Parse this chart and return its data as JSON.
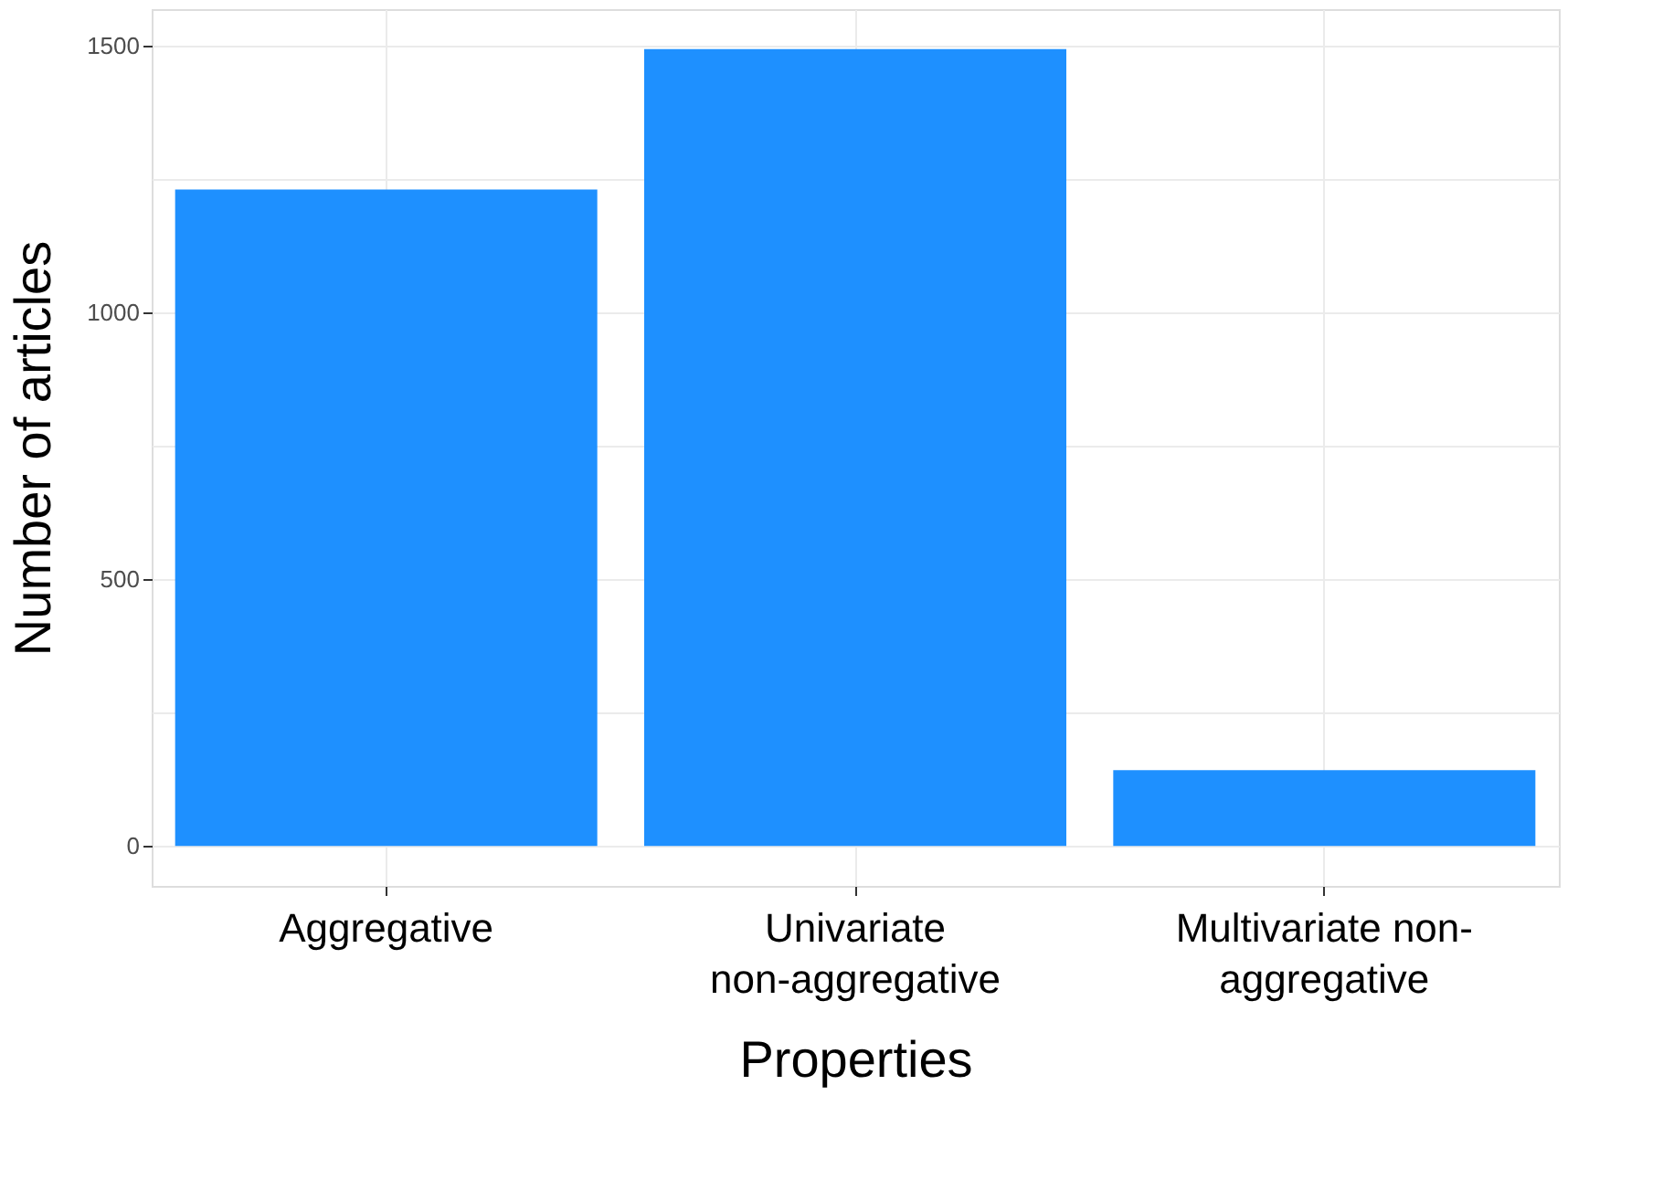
{
  "chart_data": {
    "type": "bar",
    "xlabel": "Properties",
    "ylabel": "Number of articles",
    "categories": [
      "Aggregative",
      "Univariate\nnon-aggregative",
      "Multivariate non-\naggregative"
    ],
    "values": [
      1230,
      1493,
      142
    ],
    "color": "#1e90ff",
    "ylim": [
      -75,
      1568
    ],
    "yticks": [
      0,
      {
        "value": 250,
        "label": null
      },
      500,
      {
        "value": 750,
        "label": null
      },
      1000,
      {
        "value": 1250,
        "label": null
      },
      1500
    ],
    "grid": true
  }
}
